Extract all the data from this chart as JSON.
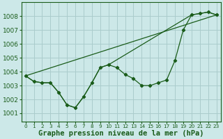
{
  "title": "Graphe pression niveau de la mer (hPa)",
  "bg_color": "#cce8e8",
  "grid_color": "#aacccc",
  "line_color": "#1a5c1a",
  "x_ticks": [
    0,
    1,
    2,
    3,
    4,
    5,
    6,
    7,
    8,
    9,
    10,
    11,
    12,
    13,
    14,
    15,
    16,
    17,
    18,
    19,
    20,
    21,
    22,
    23
  ],
  "y_ticks": [
    1001,
    1002,
    1003,
    1004,
    1005,
    1006,
    1007,
    1008
  ],
  "ylim": [
    1000.4,
    1009.0
  ],
  "xlim": [
    -0.5,
    23.5
  ],
  "series1_x": [
    0,
    1,
    2,
    3,
    4,
    5,
    6,
    7,
    8,
    9,
    10,
    11,
    12,
    13,
    14,
    15,
    16,
    17,
    18,
    19,
    20,
    21,
    22,
    23
  ],
  "series1_y": [
    1003.7,
    1003.3,
    1003.2,
    1003.2,
    1002.5,
    1001.6,
    1001.4,
    1002.2,
    1003.2,
    1004.3,
    1004.5,
    1004.3,
    1003.8,
    1003.5,
    1003.0,
    1003.0,
    1003.2,
    1003.4,
    1004.8,
    1007.0,
    1008.1,
    1008.2,
    1008.3,
    1008.1
  ],
  "series2_x": [
    0,
    23
  ],
  "series2_y": [
    1003.7,
    1008.1
  ],
  "series3_x": [
    0,
    1,
    2,
    3,
    4,
    5,
    6,
    7,
    8,
    9,
    10,
    20,
    21,
    22,
    23
  ],
  "series3_y": [
    1003.7,
    1003.3,
    1003.2,
    1003.2,
    1002.5,
    1001.6,
    1001.4,
    1002.2,
    1003.2,
    1004.3,
    1004.5,
    1008.1,
    1008.2,
    1008.3,
    1008.1
  ],
  "xlabel_fontsize": 7.5,
  "tick_fontsize": 6.5,
  "xtick_fontsize": 5.2
}
